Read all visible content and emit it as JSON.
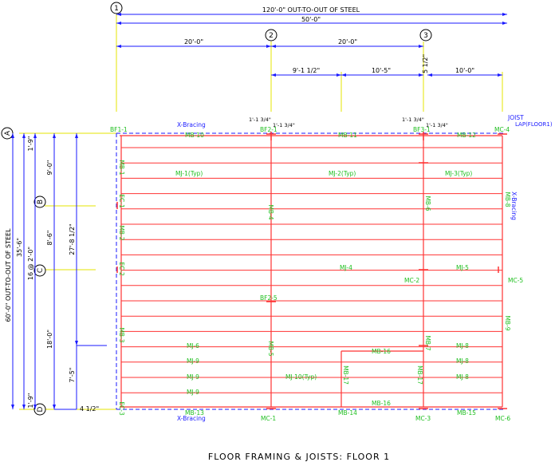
{
  "title": "FLOOR FRAMING & JOISTS: FLOOR 1",
  "grid_bubbles": {
    "col1": "1",
    "col2": "2",
    "col3": "3",
    "rowA": "A",
    "rowB": "B",
    "rowC": "C",
    "rowD": "D"
  },
  "dimensions": {
    "overall_top": "120'-0\" OUT-TO-OUT OF STEEL",
    "span_top": "50'-0\"",
    "bay_1_2": "20'-0\"",
    "bay_2_3": "20'-0\"",
    "sub_a": "9'-1 1/2\"",
    "sub_b": "10'-5\"",
    "sub_c": "5 1/2\"",
    "sub_d": "10'-0\"",
    "offset_2a": "1'-1 3/4\"",
    "offset_2b": "1'-1 3/4\"",
    "offset_3a": "1'-1 3/4\"",
    "offset_3b": "1'-1 3/4\"",
    "left_overall": "60'-0\" OUT-TO-OUT OF STEEL",
    "left_35": "35'-6\"",
    "left_16": "16 @ 2'-0\"",
    "left_1_9_top": "1'-9\"",
    "left_9_0": "9'-0\"",
    "left_8_6": "8'-6\"",
    "left_18_0": "18'-0\"",
    "left_1_9_bot": "1'-9\"",
    "left_27": "27'-8 1/2\"",
    "left_7_5": "7'-5\"",
    "left_4_half": "4 1/2\""
  },
  "notes": {
    "joist_lap_1": "JOIST",
    "joist_lap_2": "LAP(FLOOR1)",
    "x_bracing_top": "X-Bracing",
    "x_bracing_bottom": "X-Bracing",
    "x_bracing_right": "X-Bracing"
  },
  "members": {
    "bf1_1": "BF1-1",
    "bf2_1": "BF2-1",
    "bf3_1": "BF3-1",
    "bf2_5": "BF2-5",
    "mc_4": "MC-4",
    "mc_2": "MC-2",
    "mc_5": "MC-5",
    "mc_1": "MC-1",
    "mc_3": "MC-3",
    "mc_6": "MC-6",
    "mb_10": "MB-10",
    "mb_11": "MB-11",
    "mb_12": "MB-12",
    "mb_13": "MB-13",
    "mb_14": "MB-14",
    "mb_15": "MB-15",
    "mb_16a": "MB-16",
    "mb_16b": "MB-16",
    "mb_17a": "MB-17",
    "mb_17b": "MB-17",
    "mb_1": "MB-1",
    "mb_2": "MB-2",
    "mb_3": "MB-3",
    "mb_4": "MB-4",
    "mb_5": "MB-5",
    "mb_6": "MB-6",
    "mb_7": "MB-7",
    "mb_8": "MB-8",
    "mb_9": "MB-9",
    "ec_1": "EC-1",
    "ec_2": "EC-2",
    "ec_3": "EC-3",
    "mj_1": "MJ-1(Typ)",
    "mj_2": "MJ-2(Typ)",
    "mj_3": "MJ-3(Typ)",
    "mj_4": "MJ-4",
    "mj_5": "MJ-5",
    "mj_6": "MJ-6",
    "mj_9a": "MJ-9",
    "mj_9b": "MJ-9",
    "mj_9c": "MJ-9",
    "mj_10": "MJ-10(Typ)",
    "mj_8a": "MJ-8",
    "mj_8b": "MJ-8",
    "mj_8c": "MJ-8"
  },
  "colors": {
    "beam": "#ff3333",
    "label": "#1fbf1f",
    "grid_line": "#e6e600",
    "dimension": "#1a1aff",
    "brace": "#1a1aff",
    "text": "#000000"
  }
}
